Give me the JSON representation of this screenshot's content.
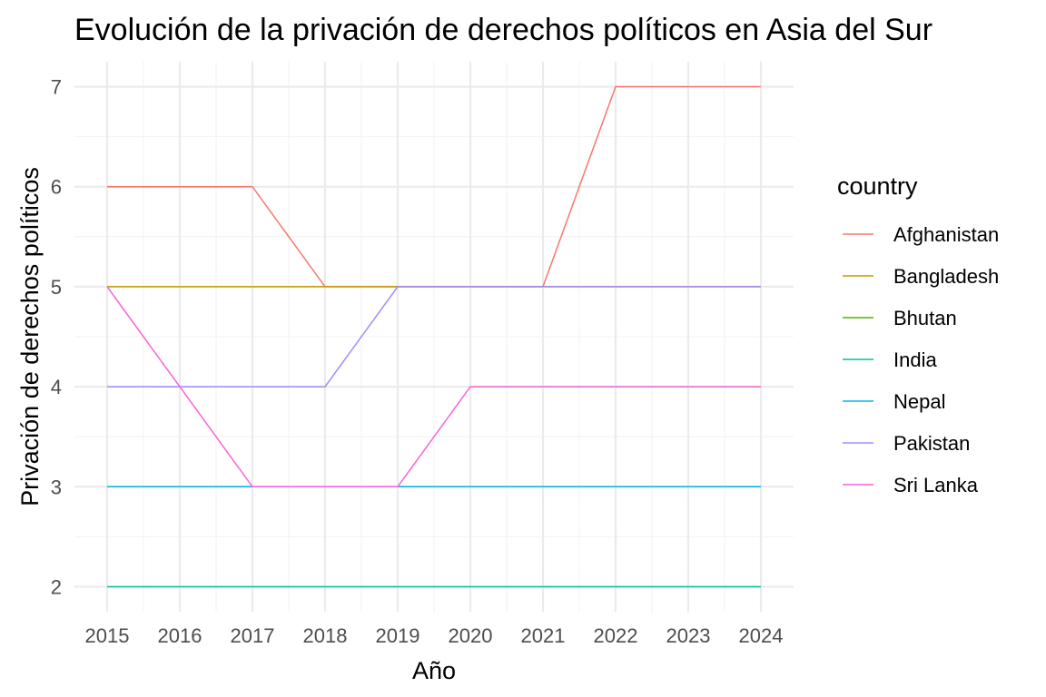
{
  "chart_data": {
    "type": "line",
    "title": "Evolución de la privación de derechos políticos en Asia del Sur",
    "xlabel": "Año",
    "ylabel": "Privación de derechos políticos",
    "x": [
      2015,
      2016,
      2017,
      2018,
      2019,
      2020,
      2021,
      2022,
      2023,
      2024
    ],
    "x_ticks": [
      "2015",
      "2016",
      "2017",
      "2018",
      "2019",
      "2020",
      "2021",
      "2022",
      "2023",
      "2024"
    ],
    "y_ticks": [
      "2",
      "3",
      "4",
      "5",
      "6",
      "7"
    ],
    "ylim": [
      1.75,
      7.25
    ],
    "xlim": [
      2014.55,
      2024.45
    ],
    "grid": true,
    "legend": {
      "title": "country",
      "position": "right"
    },
    "series": [
      {
        "name": "Afghanistan",
        "color": "#F8766D",
        "values": [
          6,
          6,
          6,
          5,
          5,
          5,
          5,
          7,
          7,
          7
        ]
      },
      {
        "name": "Bangladesh",
        "color": "#C49A00",
        "values": [
          5,
          5,
          5,
          5,
          5,
          5,
          5,
          5,
          5,
          5
        ]
      },
      {
        "name": "Bhutan",
        "color": "#53B400",
        "values": [
          3,
          3,
          3,
          3,
          3,
          3,
          3,
          3,
          3,
          3
        ]
      },
      {
        "name": "India",
        "color": "#00C094",
        "values": [
          2,
          2,
          2,
          2,
          2,
          2,
          2,
          2,
          2,
          2
        ]
      },
      {
        "name": "Nepal",
        "color": "#00B6EB",
        "values": [
          3,
          3,
          3,
          3,
          3,
          3,
          3,
          3,
          3,
          3
        ]
      },
      {
        "name": "Pakistan",
        "color": "#A58AFF",
        "values": [
          4,
          4,
          4,
          4,
          5,
          5,
          5,
          5,
          5,
          5
        ]
      },
      {
        "name": "Sri Lanka",
        "color": "#FB61D7",
        "values": [
          5,
          4,
          3,
          3,
          3,
          4,
          4,
          4,
          4,
          4
        ]
      }
    ]
  }
}
